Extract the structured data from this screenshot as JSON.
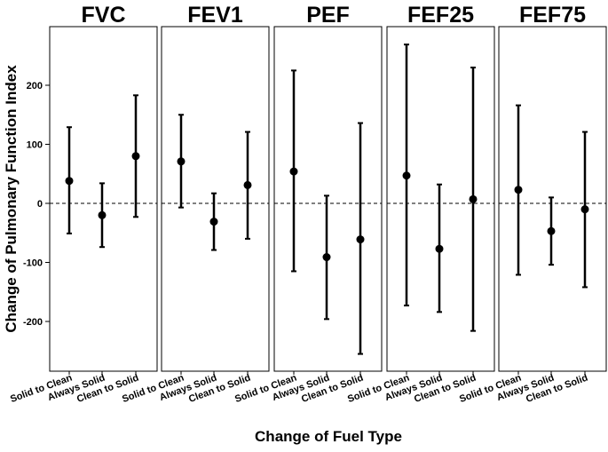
{
  "chart_data": {
    "type": "errorbar",
    "xlabel": "Change of Fuel Type",
    "ylabel": "Change of Pulmonary Function Index",
    "ylim": [
      -285,
      295
    ],
    "yticks": [
      -200,
      -100,
      0,
      100,
      200
    ],
    "ytick_labels": [
      "-200",
      "-100",
      "0",
      "100",
      "200"
    ],
    "reference_line": 0,
    "categories": [
      "Solid to Clean",
      "Always Solid",
      "Clean to Solid"
    ],
    "panels": [
      {
        "title": "FVC",
        "estimates": [
          38,
          -20,
          80
        ],
        "lower": [
          -51,
          -74,
          -23
        ],
        "upper": [
          129,
          34,
          183
        ]
      },
      {
        "title": "FEV1",
        "estimates": [
          71,
          -31,
          31
        ],
        "lower": [
          -7,
          -79,
          -60
        ],
        "upper": [
          150,
          17,
          121
        ]
      },
      {
        "title": "PEF",
        "estimates": [
          54,
          -91,
          -61
        ],
        "lower": [
          -115,
          -196,
          -255
        ],
        "upper": [
          225,
          13,
          136
        ]
      },
      {
        "title": "FEF25",
        "estimates": [
          47,
          -77,
          7
        ],
        "lower": [
          -173,
          -184,
          -216
        ],
        "upper": [
          269,
          32,
          230
        ]
      },
      {
        "title": "FEF75",
        "estimates": [
          23,
          -47,
          -10
        ],
        "lower": [
          -121,
          -104,
          -142
        ],
        "upper": [
          166,
          10,
          121
        ]
      }
    ]
  }
}
